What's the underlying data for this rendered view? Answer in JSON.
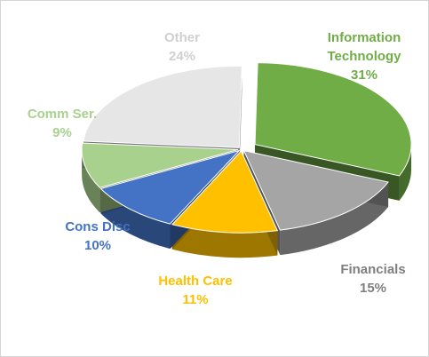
{
  "chart_data": {
    "type": "pie",
    "title": "",
    "start_angle_deg": -89,
    "slices": [
      {
        "label_lines": [
          "Information",
          "Technology"
        ],
        "value": 31,
        "value_label": "31%",
        "color": "#70ad47"
      },
      {
        "label_lines": [
          "Financials"
        ],
        "value": 15,
        "value_label": "15%",
        "color": "#a5a5a5"
      },
      {
        "label_lines": [
          "Health Care"
        ],
        "value": 11,
        "value_label": "11%",
        "color": "#ffc000"
      },
      {
        "label_lines": [
          "Cons Disc"
        ],
        "value": 10,
        "value_label": "10%",
        "color": "#4472c4"
      },
      {
        "label_lines": [
          "Comm Ser."
        ],
        "value": 9,
        "value_label": "9%",
        "color": "#a9d18e"
      },
      {
        "label_lines": [
          "Other"
        ],
        "value": 24,
        "value_label": "24%",
        "color": "#e7e6e6"
      }
    ],
    "exploded": [
      "Information Technology"
    ],
    "label_colors": [
      "#70ad47",
      "#7f7f7f",
      "#ffc000",
      "#4472c4",
      "#a9d18e",
      "#d0d0d0"
    ]
  }
}
